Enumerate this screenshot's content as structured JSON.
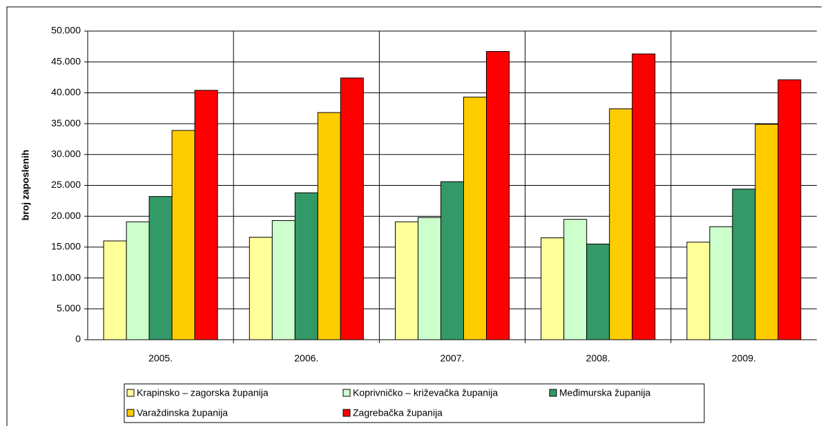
{
  "chart_data": {
    "type": "bar",
    "y_label": "broj zaposlenih",
    "categories": [
      "2005.",
      "2006.",
      "2007.",
      "2008.",
      "2009."
    ],
    "series": [
      {
        "name": "Krapinsko – zagorska županija",
        "color": "#ffff99",
        "values": [
          16000,
          16600,
          19100,
          16500,
          15800
        ]
      },
      {
        "name": "Koprivničko – križevačka županija",
        "color": "#ccffcc",
        "values": [
          19100,
          19300,
          19800,
          19500,
          18300
        ]
      },
      {
        "name": "Međimurska županija",
        "color": "#339966",
        "values": [
          23200,
          23800,
          25600,
          15500,
          24400
        ]
      },
      {
        "name": "Varaždinska županija",
        "color": "#ffcc00",
        "values": [
          33900,
          36800,
          39300,
          37400,
          34900
        ]
      },
      {
        "name": "Zagrebačka županija",
        "color": "#ff0000",
        "values": [
          40400,
          42400,
          46700,
          46300,
          42100
        ]
      }
    ],
    "ylim": [
      0,
      50000
    ],
    "yticks": [
      0,
      {
        "value": 5000,
        "label": "5.000"
      },
      {
        "value": 10000,
        "label": "10.000"
      },
      {
        "value": 15000,
        "label": "15.000"
      },
      {
        "value": 20000,
        "label": "20.000"
      },
      {
        "value": 25000,
        "label": "25.000"
      },
      {
        "value": 30000,
        "label": "30.000"
      },
      {
        "value": 35000,
        "label": "35.000"
      },
      {
        "value": 40000,
        "label": "40.000"
      },
      {
        "value": 45000,
        "label": "45.000"
      },
      {
        "value": 50000,
        "label": "50.000"
      }
    ],
    "grid": true
  }
}
